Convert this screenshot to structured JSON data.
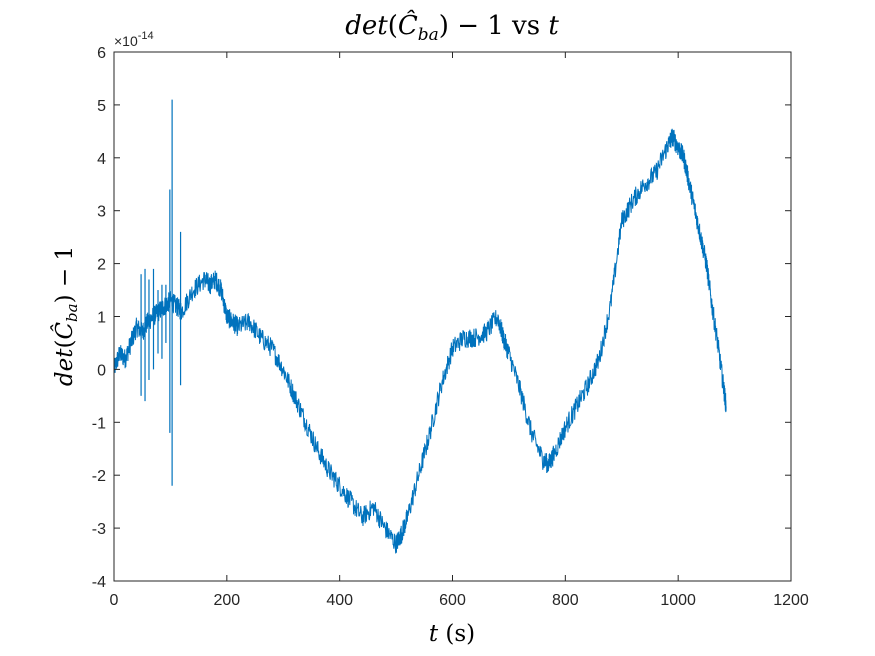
{
  "chart_data": {
    "type": "line",
    "title": "det(Ĉ_ba) − 1 vs t",
    "xlabel": "t (s)",
    "ylabel": "det(Ĉ_ba) − 1",
    "y_exponent": "×10^-14",
    "xlim": [
      0,
      1200
    ],
    "ylim": [
      -4,
      6
    ],
    "grid": false,
    "x_ticks": [
      "0",
      "200",
      "400",
      "600",
      "800",
      "1000",
      "1200"
    ],
    "y_ticks": [
      "-4",
      "-3",
      "-2",
      "-1",
      "0",
      "1",
      "2",
      "3",
      "4",
      "5",
      "6"
    ],
    "series": [
      {
        "color": "#0072BD",
        "x": [
          0,
          10,
          20,
          30,
          40,
          50,
          60,
          70,
          80,
          90,
          100,
          110,
          120,
          140,
          160,
          170,
          180,
          190,
          200,
          210,
          220,
          240,
          260,
          280,
          300,
          320,
          340,
          360,
          380,
          400,
          420,
          440,
          460,
          480,
          500,
          510,
          520,
          540,
          560,
          580,
          600,
          620,
          640,
          660,
          680,
          690,
          700,
          720,
          740,
          760,
          770,
          780,
          800,
          820,
          840,
          860,
          880,
          900,
          920,
          940,
          960,
          980,
          990,
          1000,
          1010,
          1020,
          1030,
          1040,
          1050,
          1060,
          1070,
          1080,
          1085
        ],
        "y": [
          0.0,
          0.3,
          0.2,
          0.5,
          0.8,
          0.7,
          0.9,
          1.0,
          1.1,
          1.2,
          1.3,
          1.2,
          1.1,
          1.5,
          1.7,
          1.6,
          1.7,
          1.5,
          1.0,
          0.9,
          0.8,
          0.9,
          0.6,
          0.4,
          0.0,
          -0.5,
          -1.0,
          -1.5,
          -1.9,
          -2.2,
          -2.5,
          -2.8,
          -2.6,
          -3.0,
          -3.3,
          -3.1,
          -2.8,
          -2.0,
          -1.2,
          -0.3,
          0.4,
          0.6,
          0.6,
          0.7,
          1.0,
          0.6,
          0.3,
          -0.4,
          -1.2,
          -1.7,
          -1.8,
          -1.6,
          -1.1,
          -0.7,
          -0.3,
          0.2,
          1.2,
          2.8,
          3.2,
          3.5,
          3.7,
          4.2,
          4.4,
          4.2,
          4.0,
          3.5,
          3.0,
          2.5,
          2.0,
          1.2,
          0.5,
          -0.3,
          -0.7
        ]
      }
    ],
    "spikes": [
      {
        "x": 48,
        "y": [
          -0.5,
          1.8
        ]
      },
      {
        "x": 55,
        "y": [
          -0.6,
          1.9
        ]
      },
      {
        "x": 62,
        "y": [
          -0.2,
          1.7
        ]
      },
      {
        "x": 70,
        "y": [
          0.0,
          1.9
        ]
      },
      {
        "x": 78,
        "y": [
          0.3,
          1.5
        ]
      },
      {
        "x": 85,
        "y": [
          0.2,
          1.6
        ]
      },
      {
        "x": 92,
        "y": [
          0.5,
          1.6
        ]
      },
      {
        "x": 99,
        "y": [
          -1.2,
          3.4
        ]
      },
      {
        "x": 103,
        "y": [
          -2.2,
          5.1
        ]
      },
      {
        "x": 118,
        "y": [
          -0.3,
          2.6
        ]
      }
    ]
  }
}
